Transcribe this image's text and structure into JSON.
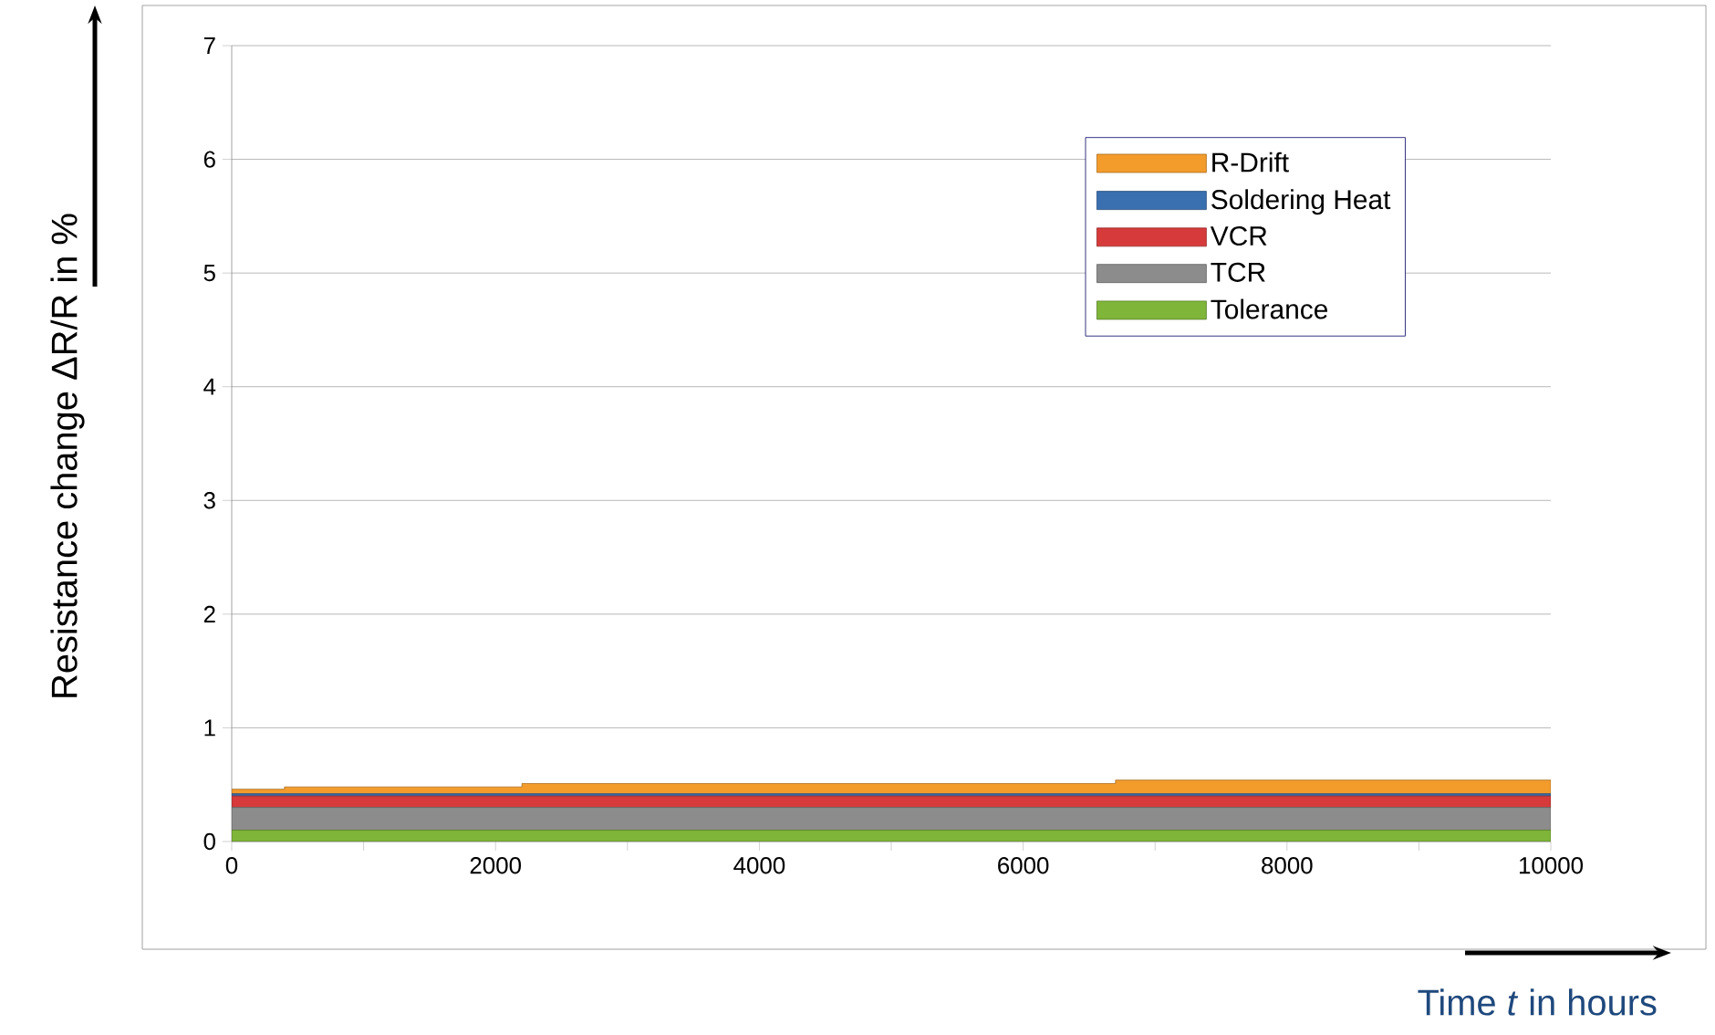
{
  "chart_data": {
    "type": "area",
    "stacked": true,
    "xlabel": "Time *t* in hours",
    "ylabel": "Resistance change ΔR/R in %",
    "x": [
      0,
      400,
      400,
      2200,
      2200,
      6700,
      6700,
      10000
    ],
    "series": [
      {
        "name": "Tolerance",
        "color": "#7fb539",
        "values": [
          0.1,
          0.1,
          0.1,
          0.1,
          0.1,
          0.1,
          0.1,
          0.1
        ]
      },
      {
        "name": "TCR",
        "color": "#8c8c8c",
        "values": [
          0.2,
          0.2,
          0.2,
          0.2,
          0.2,
          0.2,
          0.2,
          0.2
        ]
      },
      {
        "name": "VCR",
        "color": "#d63a3a",
        "values": [
          0.1,
          0.1,
          0.1,
          0.1,
          0.1,
          0.1,
          0.1,
          0.1
        ]
      },
      {
        "name": "Soldering Heat",
        "color": "#3a6fb0",
        "values": [
          0.02,
          0.02,
          0.02,
          0.02,
          0.02,
          0.02,
          0.02,
          0.02
        ]
      },
      {
        "name": "R-Drift",
        "color": "#f39c2c",
        "values": [
          0.04,
          0.04,
          0.06,
          0.06,
          0.09,
          0.09,
          0.12,
          0.12
        ]
      }
    ],
    "xlim": [
      0,
      10000
    ],
    "ylim": [
      0,
      7
    ],
    "xticks": [
      0,
      {
        "value": 1000,
        "label": null
      },
      2000,
      {
        "value": 3000,
        "label": null
      },
      4000,
      {
        "value": 5000,
        "label": null
      },
      6000,
      {
        "value": 7000,
        "label": null
      },
      8000,
      {
        "value": 9000,
        "label": null
      },
      10000
    ],
    "yticks": [
      0,
      1,
      2,
      3,
      4,
      5,
      6,
      7
    ],
    "grid": "y",
    "legend": "top right"
  }
}
